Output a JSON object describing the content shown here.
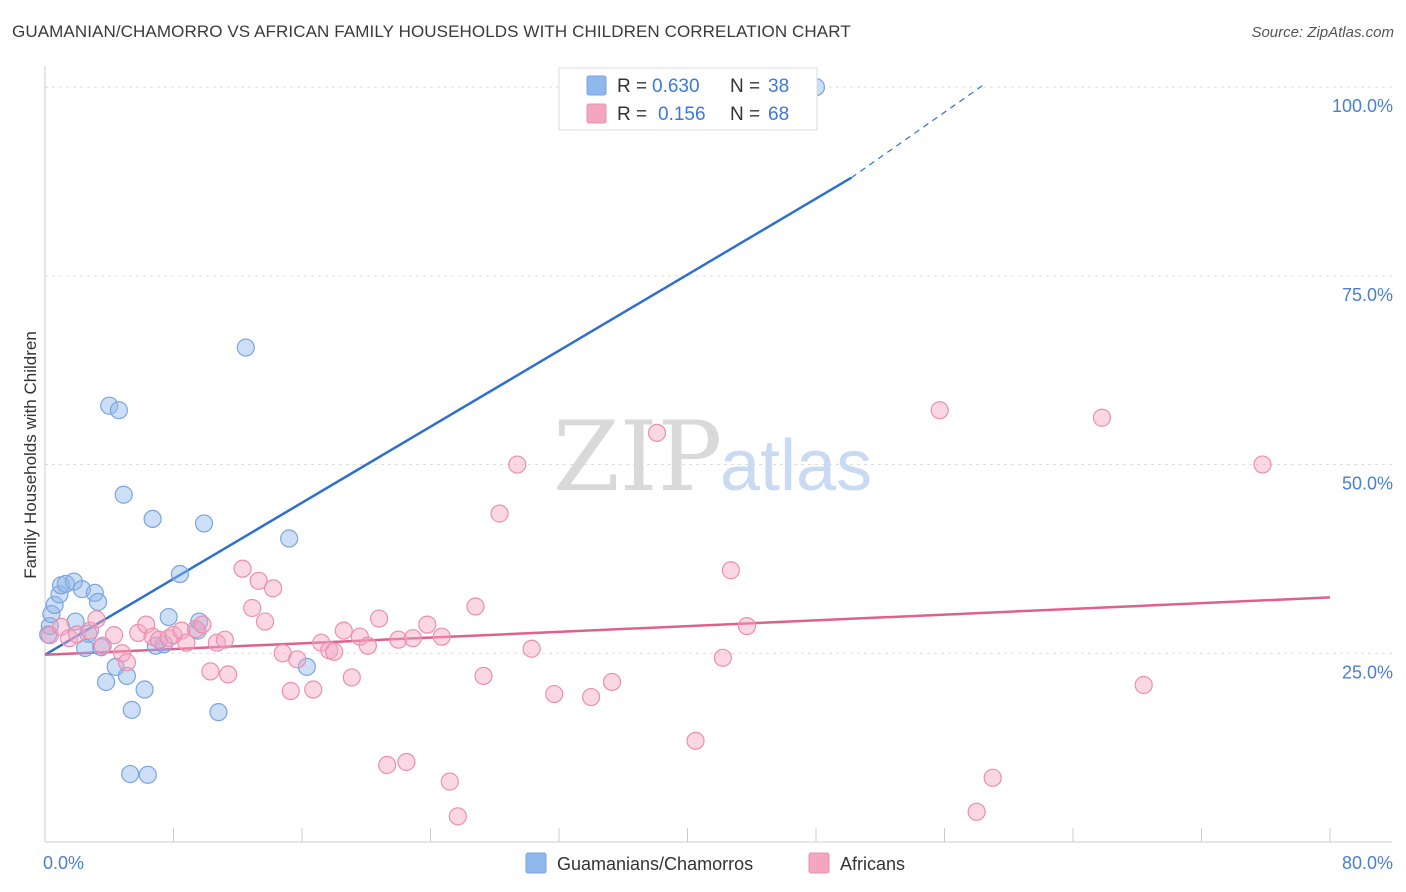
{
  "header": {
    "title": "GUAMANIAN/CHAMORRO VS AFRICAN FAMILY HOUSEHOLDS WITH CHILDREN CORRELATION CHART",
    "source": "Source: ZipAtlas.com"
  },
  "watermark": {
    "zip": "ZIP",
    "atlas": "atlas"
  },
  "legend_box": {
    "rows": [
      {
        "r_label": "R =",
        "r_value": "0.630",
        "n_label": "N =",
        "n_value": "38",
        "color": "#8fb8ec"
      },
      {
        "r_label": "R =",
        "r_value": "0.156",
        "n_label": "N =",
        "n_value": "68",
        "color": "#f4a6c0"
      }
    ]
  },
  "chart_data": {
    "type": "scatter",
    "title": "GUAMANIAN/CHAMORRO VS AFRICAN FAMILY HOUSEHOLDS WITH CHILDREN CORRELATION CHART",
    "xlabel": "",
    "ylabel": "Family Households with Children",
    "xlim": [
      0,
      80
    ],
    "ylim": [
      0,
      102
    ],
    "x_tick_labels": [
      "0.0%",
      "80.0%"
    ],
    "y_ticks": [
      25,
      50,
      75,
      100
    ],
    "y_tick_labels": [
      "25.0%",
      "50.0%",
      "75.0%",
      "100.0%"
    ],
    "grid": true,
    "legend_position": "top-center",
    "series": [
      {
        "name": "Guamanians/Chamorros",
        "color": "#8fb8ec",
        "line_color": "#2f6fcf",
        "points": [
          [
            0.2,
            27.5
          ],
          [
            0.3,
            28.6
          ],
          [
            0.4,
            30.2
          ],
          [
            0.6,
            31.4
          ],
          [
            0.9,
            32.8
          ],
          [
            1.0,
            34.0
          ],
          [
            1.3,
            34.2
          ],
          [
            1.8,
            34.5
          ],
          [
            1.9,
            29.2
          ],
          [
            2.3,
            33.5
          ],
          [
            2.5,
            25.7
          ],
          [
            2.7,
            27.6
          ],
          [
            3.1,
            33.0
          ],
          [
            3.3,
            31.8
          ],
          [
            3.5,
            25.8
          ],
          [
            3.8,
            21.2
          ],
          [
            4.0,
            57.8
          ],
          [
            4.4,
            23.2
          ],
          [
            4.6,
            57.2
          ],
          [
            4.9,
            46.0
          ],
          [
            5.1,
            22.0
          ],
          [
            5.3,
            9.0
          ],
          [
            5.4,
            17.5
          ],
          [
            6.2,
            20.2
          ],
          [
            6.4,
            8.9
          ],
          [
            6.7,
            42.8
          ],
          [
            6.9,
            26.0
          ],
          [
            7.4,
            26.2
          ],
          [
            7.7,
            29.8
          ],
          [
            8.4,
            35.5
          ],
          [
            9.5,
            28.0
          ],
          [
            9.6,
            29.2
          ],
          [
            9.9,
            42.2
          ],
          [
            10.8,
            17.2
          ],
          [
            12.5,
            65.5
          ],
          [
            15.2,
            40.2
          ],
          [
            16.3,
            23.2
          ],
          [
            48.0,
            100.0
          ]
        ],
        "trend": {
          "x": [
            0,
            50.2
          ],
          "y": [
            24.8,
            88.0
          ]
        },
        "trend_dashed": {
          "x": [
            50.2,
            58.5
          ],
          "y": [
            88.0,
            100.4
          ]
        }
      },
      {
        "name": "Africans",
        "color": "#f4a6c0",
        "line_color": "#e0608c",
        "points": [
          [
            0.3,
            27.4
          ],
          [
            1.0,
            28.5
          ],
          [
            1.5,
            27.0
          ],
          [
            2.0,
            27.5
          ],
          [
            2.8,
            28.0
          ],
          [
            3.2,
            29.5
          ],
          [
            3.6,
            26.0
          ],
          [
            4.3,
            27.4
          ],
          [
            4.8,
            25.0
          ],
          [
            5.1,
            23.8
          ],
          [
            5.8,
            27.7
          ],
          [
            6.3,
            28.8
          ],
          [
            6.7,
            27.2
          ],
          [
            7.1,
            26.8
          ],
          [
            7.7,
            27.0
          ],
          [
            8.0,
            27.4
          ],
          [
            8.5,
            28.0
          ],
          [
            8.8,
            26.4
          ],
          [
            9.4,
            28.2
          ],
          [
            9.8,
            28.8
          ],
          [
            10.3,
            22.6
          ],
          [
            10.7,
            26.4
          ],
          [
            11.2,
            26.8
          ],
          [
            11.4,
            22.2
          ],
          [
            12.3,
            36.2
          ],
          [
            12.9,
            31.0
          ],
          [
            13.3,
            34.6
          ],
          [
            13.7,
            29.2
          ],
          [
            14.2,
            33.6
          ],
          [
            14.8,
            25.0
          ],
          [
            15.3,
            20.0
          ],
          [
            15.7,
            24.2
          ],
          [
            16.7,
            20.2
          ],
          [
            17.2,
            26.4
          ],
          [
            17.7,
            25.4
          ],
          [
            18.0,
            25.2
          ],
          [
            18.6,
            28.0
          ],
          [
            19.1,
            21.8
          ],
          [
            19.6,
            27.2
          ],
          [
            20.1,
            26.0
          ],
          [
            20.8,
            29.6
          ],
          [
            21.3,
            10.2
          ],
          [
            22.0,
            26.8
          ],
          [
            22.5,
            10.6
          ],
          [
            22.9,
            27.0
          ],
          [
            23.8,
            28.8
          ],
          [
            24.7,
            27.2
          ],
          [
            25.2,
            8.0
          ],
          [
            25.7,
            3.4
          ],
          [
            26.8,
            31.2
          ],
          [
            27.3,
            22.0
          ],
          [
            28.3,
            43.5
          ],
          [
            29.4,
            50.0
          ],
          [
            30.3,
            25.6
          ],
          [
            31.7,
            19.6
          ],
          [
            34.0,
            19.2
          ],
          [
            35.3,
            21.2
          ],
          [
            38.1,
            54.2
          ],
          [
            40.5,
            13.4
          ],
          [
            42.2,
            24.4
          ],
          [
            42.7,
            36.0
          ],
          [
            43.7,
            28.6
          ],
          [
            55.7,
            57.2
          ],
          [
            58.0,
            4.0
          ],
          [
            59.0,
            8.5
          ],
          [
            65.8,
            56.2
          ],
          [
            68.4,
            20.8
          ],
          [
            75.8,
            50.0
          ]
        ],
        "trend": {
          "x": [
            0,
            80
          ],
          "y": [
            24.8,
            32.4
          ]
        }
      }
    ]
  },
  "bottom_legend": {
    "items": [
      {
        "label": "Guamanians/Chamorros",
        "color": "#8fb8ec"
      },
      {
        "label": "Africans",
        "color": "#f4a6c0"
      }
    ]
  }
}
